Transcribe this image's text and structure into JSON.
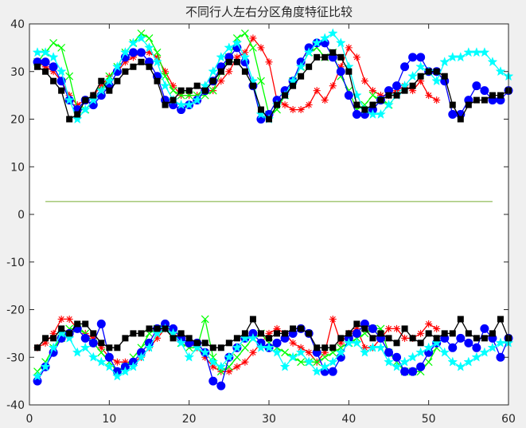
{
  "chart_data": {
    "type": "line",
    "title": "不同行人左右分区角度特征比较",
    "xlabel": "",
    "ylabel": "",
    "xlim": [
      0,
      60
    ],
    "ylim": [
      -40,
      40
    ],
    "xticks": [
      0,
      10,
      20,
      30,
      40,
      50,
      60
    ],
    "yticks": [
      -40,
      -30,
      -20,
      -10,
      0,
      10,
      20,
      30,
      40
    ],
    "grid": false,
    "legend": "none",
    "baseline": {
      "x": [
        2,
        58
      ],
      "y": [
        2.7,
        2.7
      ],
      "color": "#77ac30"
    },
    "series": [
      {
        "color": "#ff0000",
        "marker": "asterisk",
        "upper": {
          "x": [
            1,
            2,
            3,
            4,
            5,
            6,
            7,
            8,
            9,
            10,
            11,
            12,
            13,
            14,
            15,
            16,
            17,
            18,
            19,
            20,
            21,
            22,
            23,
            24,
            25,
            26,
            27,
            28,
            29,
            30,
            31,
            32,
            33,
            34,
            35,
            36,
            37,
            38,
            39,
            40,
            41,
            42,
            43,
            44,
            45,
            46,
            47,
            48,
            49,
            50,
            51
          ],
          "y": [
            32,
            31,
            30,
            28,
            25,
            23,
            24,
            25,
            27,
            29,
            30,
            32,
            33,
            34,
            34,
            33,
            30,
            27,
            25,
            25,
            25,
            26,
            26,
            28,
            30,
            33,
            34,
            37,
            35,
            32,
            24,
            23,
            22,
            22,
            23,
            26,
            24,
            27,
            31,
            35,
            33,
            28,
            26,
            25,
            25,
            26,
            27,
            26,
            28,
            25,
            24
          ]
        },
        "lower": {
          "x": [
            1,
            2,
            3,
            4,
            5,
            6,
            7,
            8,
            9,
            10,
            11,
            12,
            13,
            14,
            15,
            16,
            17,
            18,
            19,
            20,
            21,
            22,
            23,
            24,
            25,
            26,
            27,
            28,
            29,
            30,
            31,
            32,
            33,
            34,
            35,
            36,
            37,
            38,
            39,
            40,
            41,
            42,
            43,
            44,
            45,
            46,
            47,
            48,
            49,
            50,
            51
          ],
          "y": [
            -28,
            -27,
            -25,
            -22,
            -22,
            -24,
            -25,
            -26,
            -28,
            -30,
            -31,
            -31,
            -31,
            -30,
            -28,
            -26,
            -24,
            -25,
            -26,
            -27,
            -28,
            -30,
            -32,
            -33,
            -33,
            -32,
            -31,
            -29,
            -27,
            -25,
            -24,
            -25,
            -27,
            -28,
            -29,
            -31,
            -29,
            -22,
            -27,
            -25,
            -24,
            -28,
            -28,
            -26,
            -24,
            -24,
            -26,
            -26,
            -25,
            -23,
            -24
          ]
        }
      },
      {
        "color": "#00ff00",
        "marker": "cross",
        "upper": {
          "x": [
            1,
            2,
            3,
            4,
            5,
            6,
            7,
            8,
            9,
            10,
            11,
            12,
            13,
            14,
            15,
            16,
            17,
            18,
            19,
            20,
            21,
            22,
            23,
            24,
            25,
            26,
            27,
            28,
            29,
            30,
            31,
            32,
            33,
            34,
            35,
            36,
            37,
            38,
            39,
            40,
            41,
            42,
            43,
            44,
            45
          ],
          "y": [
            32,
            34,
            36,
            35,
            29,
            22,
            22,
            24,
            26,
            29,
            31,
            34,
            36,
            38,
            37,
            34,
            29,
            26,
            25,
            25,
            25,
            25,
            26,
            30,
            33,
            37,
            38,
            35,
            28,
            21,
            22,
            25,
            28,
            31,
            34,
            35,
            33,
            34,
            29,
            26,
            22,
            23,
            25,
            24,
            23
          ]
        },
        "lower": {
          "x": [
            1,
            2,
            3,
            4,
            5,
            6,
            7,
            8,
            9,
            10,
            11,
            12,
            13,
            14,
            15,
            16,
            17,
            18,
            19,
            20,
            21,
            22,
            23,
            24,
            25,
            26,
            27,
            28,
            29,
            30,
            31,
            32,
            33,
            34,
            35,
            36,
            37,
            38,
            39,
            40,
            41,
            42,
            43,
            44,
            45,
            46,
            47,
            48,
            49,
            50,
            51
          ],
          "y": [
            -33,
            -31,
            -28,
            -26,
            -24,
            -24,
            -25,
            -27,
            -29,
            -31,
            -33,
            -32,
            -30,
            -28,
            -25,
            -24,
            -24,
            -25,
            -27,
            -28,
            -28,
            -22,
            -30,
            -33,
            -32,
            -30,
            -28,
            -26,
            -25,
            -27,
            -28,
            -29,
            -30,
            -31,
            -31,
            -31,
            -30,
            -29,
            -28,
            -27,
            -26,
            -25,
            -24,
            -24,
            -29,
            -31,
            -33,
            -33,
            -33,
            -31,
            -28
          ]
        }
      },
      {
        "color": "#0000ff",
        "marker": "circle",
        "upper": {
          "x": [
            1,
            2,
            3,
            4,
            5,
            6,
            7,
            8,
            9,
            10,
            11,
            12,
            13,
            14,
            15,
            16,
            17,
            18,
            19,
            20,
            21,
            22,
            23,
            24,
            25,
            26,
            27,
            28,
            29,
            30,
            31,
            32,
            33,
            34,
            35,
            36,
            37,
            38,
            39,
            40,
            41,
            42,
            43,
            44,
            45,
            46,
            47,
            48,
            49,
            50,
            51,
            52,
            53,
            54,
            55,
            56,
            57,
            58,
            59,
            60
          ],
          "y": [
            32,
            32,
            31,
            28,
            24,
            22,
            24,
            23,
            25,
            27,
            30,
            33,
            34,
            34,
            32,
            29,
            24,
            23,
            22,
            23,
            24,
            26,
            28,
            31,
            33,
            35,
            32,
            27,
            20,
            21,
            24,
            26,
            28,
            32,
            35,
            36,
            36,
            33,
            30,
            25,
            21,
            21,
            22,
            24,
            26,
            27,
            31,
            33,
            33,
            30,
            30,
            28,
            21,
            21,
            24,
            27,
            26,
            24,
            24,
            26
          ]
        },
        "lower": {
          "x": [
            1,
            2,
            3,
            4,
            5,
            6,
            7,
            8,
            9,
            10,
            11,
            12,
            13,
            14,
            15,
            16,
            17,
            18,
            19,
            20,
            21,
            22,
            23,
            24,
            25,
            26,
            27,
            28,
            29,
            30,
            31,
            32,
            33,
            34,
            35,
            36,
            37,
            38,
            39,
            40,
            41,
            42,
            43,
            44,
            45,
            46,
            47,
            48,
            49,
            50,
            51,
            52,
            53,
            54,
            55,
            56,
            57,
            58,
            59,
            60
          ],
          "y": [
            -35,
            -32,
            -29,
            -26,
            -25,
            -24,
            -26,
            -27,
            -23,
            -30,
            -33,
            -32,
            -31,
            -29,
            -27,
            -24,
            -23,
            -24,
            -26,
            -27,
            -27,
            -29,
            -35,
            -36,
            -30,
            -28,
            -26,
            -25,
            -27,
            -28,
            -27,
            -26,
            -25,
            -24,
            -25,
            -29,
            -33,
            -33,
            -30,
            -26,
            -25,
            -23,
            -24,
            -26,
            -29,
            -30,
            -33,
            -33,
            -32,
            -29,
            -27,
            -26,
            -28,
            -26,
            -27,
            -28,
            -24,
            -26,
            -30,
            -26
          ]
        }
      },
      {
        "color": "#00ffff",
        "marker": "star",
        "upper": {
          "x": [
            1,
            2,
            3,
            4,
            5,
            6,
            7,
            8,
            9,
            10,
            11,
            12,
            13,
            14,
            15,
            16,
            17,
            18,
            19,
            20,
            21,
            22,
            23,
            24,
            25,
            26,
            27,
            28,
            29,
            30,
            31,
            32,
            33,
            34,
            35,
            36,
            37,
            38,
            39,
            40,
            41,
            42,
            43,
            44,
            45,
            46,
            47,
            48,
            49,
            50,
            51,
            52,
            53,
            54,
            55,
            56,
            57,
            58,
            59,
            60
          ],
          "y": [
            34,
            34,
            33,
            30,
            24,
            20,
            22,
            24,
            26,
            28,
            31,
            34,
            36,
            37,
            35,
            32,
            27,
            24,
            23,
            23,
            24,
            27,
            30,
            33,
            35,
            36,
            33,
            28,
            21,
            20,
            23,
            25,
            28,
            31,
            34,
            36,
            37,
            38,
            36,
            31,
            25,
            22,
            21,
            21,
            23,
            25,
            27,
            29,
            31,
            30,
            28,
            32,
            33,
            33,
            34,
            34,
            34,
            32,
            30,
            29
          ]
        },
        "lower": {
          "x": [
            1,
            2,
            3,
            4,
            5,
            6,
            7,
            8,
            9,
            10,
            11,
            12,
            13,
            14,
            15,
            16,
            17,
            18,
            19,
            20,
            21,
            22,
            23,
            24,
            25,
            26,
            27,
            28,
            29,
            30,
            31,
            32,
            33,
            34,
            35,
            36,
            37,
            38,
            39,
            40,
            41,
            42,
            43,
            44,
            45,
            46,
            47,
            48,
            49,
            50,
            51,
            52,
            53,
            54,
            55,
            56,
            57,
            58,
            59,
            60
          ],
          "y": [
            -34,
            -32,
            -28,
            -25,
            -26,
            -29,
            -28,
            -30,
            -31,
            -32,
            -34,
            -33,
            -32,
            -30,
            -28,
            -25,
            -24,
            -25,
            -27,
            -30,
            -28,
            -29,
            -31,
            -32,
            -30,
            -28,
            -26,
            -26,
            -28,
            -28,
            -29,
            -32,
            -30,
            -29,
            -31,
            -33,
            -32,
            -31,
            -29,
            -27,
            -27,
            -29,
            -28,
            -28,
            -31,
            -32,
            -31,
            -30,
            -29,
            -28,
            -27,
            -29,
            -31,
            -32,
            -31,
            -30,
            -29,
            -28,
            -27,
            -27
          ]
        }
      },
      {
        "color": "#000000",
        "marker": "square",
        "upper": {
          "x": [
            1,
            2,
            3,
            4,
            5,
            6,
            7,
            8,
            9,
            10,
            11,
            12,
            13,
            14,
            15,
            16,
            17,
            18,
            19,
            20,
            21,
            22,
            23,
            24,
            25,
            26,
            27,
            28,
            29,
            30,
            31,
            32,
            33,
            34,
            35,
            36,
            37,
            38,
            39,
            40,
            41,
            42,
            43,
            44,
            45,
            46,
            47,
            48,
            49,
            50,
            51,
            52,
            53,
            54,
            55,
            56,
            57,
            58,
            59,
            60
          ],
          "y": [
            31,
            30,
            28,
            26,
            20,
            21,
            24,
            25,
            28,
            26,
            28,
            30,
            31,
            32,
            31,
            28,
            23,
            24,
            26,
            26,
            27,
            26,
            28,
            30,
            32,
            32,
            30,
            27,
            22,
            20,
            23,
            25,
            27,
            29,
            31,
            33,
            33,
            34,
            33,
            30,
            23,
            22,
            23,
            24,
            25,
            25,
            26,
            27,
            29,
            30,
            30,
            29,
            23,
            20,
            23,
            24,
            24,
            25,
            25,
            26
          ]
        },
        "lower": {
          "x": [
            1,
            2,
            3,
            4,
            5,
            6,
            7,
            8,
            9,
            10,
            11,
            12,
            13,
            14,
            15,
            16,
            17,
            18,
            19,
            20,
            21,
            22,
            23,
            24,
            25,
            26,
            27,
            28,
            29,
            30,
            31,
            32,
            33,
            34,
            35,
            36,
            37,
            38,
            39,
            40,
            41,
            42,
            43,
            44,
            45,
            46,
            47,
            48,
            49,
            50,
            51,
            52,
            53,
            54,
            55,
            56,
            57,
            58,
            59,
            60
          ],
          "y": [
            -28,
            -26,
            -26,
            -24,
            -25,
            -23,
            -23,
            -25,
            -27,
            -28,
            -28,
            -26,
            -25,
            -25,
            -24,
            -24,
            -24,
            -26,
            -25,
            -26,
            -27,
            -27,
            -28,
            -28,
            -27,
            -26,
            -25,
            -22,
            -25,
            -26,
            -25,
            -25,
            -24,
            -24,
            -25,
            -28,
            -28,
            -28,
            -26,
            -25,
            -23,
            -24,
            -26,
            -25,
            -26,
            -27,
            -24,
            -26,
            -27,
            -25,
            -26,
            -25,
            -25,
            -22,
            -25,
            -26,
            -26,
            -25,
            -22,
            -26
          ]
        }
      }
    ]
  }
}
